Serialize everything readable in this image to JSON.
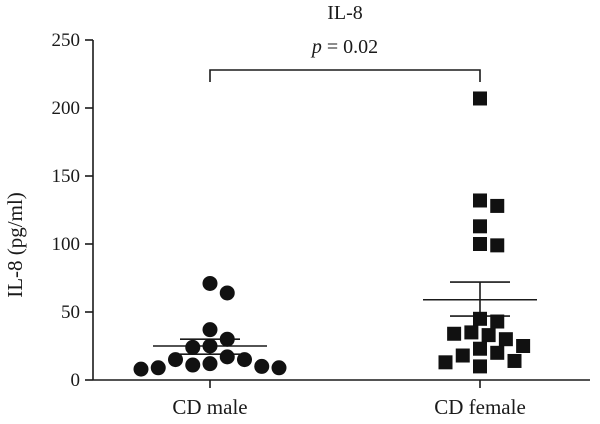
{
  "chart_data": {
    "type": "scatter",
    "title": "IL-8",
    "ylabel": "IL-8 (pg/ml)",
    "xlabel": "",
    "ylim": [
      0,
      250
    ],
    "yticks": [
      0,
      50,
      100,
      150,
      200,
      250
    ],
    "categories": [
      "CD male",
      "CD female"
    ],
    "series": [
      {
        "category": "CD male",
        "marker": "circle",
        "values": [
          71,
          64,
          37,
          30,
          24,
          25,
          15,
          12,
          10,
          8,
          9,
          9,
          11,
          15,
          17
        ],
        "mean": 25,
        "sem_upper": 30,
        "sem_lower": 19
      },
      {
        "category": "CD female",
        "marker": "square",
        "values": [
          207,
          132,
          128,
          113,
          100,
          99,
          45,
          43,
          35,
          33,
          34,
          30,
          25,
          23,
          20,
          18,
          14,
          13,
          10
        ],
        "mean": 59,
        "sem_upper": 72,
        "sem_lower": 47
      }
    ],
    "annotation": {
      "text_prefix": "p",
      "text_rest": " = 0.02",
      "between": [
        "CD male",
        "CD female"
      ]
    },
    "grid": false,
    "legend": "none"
  }
}
